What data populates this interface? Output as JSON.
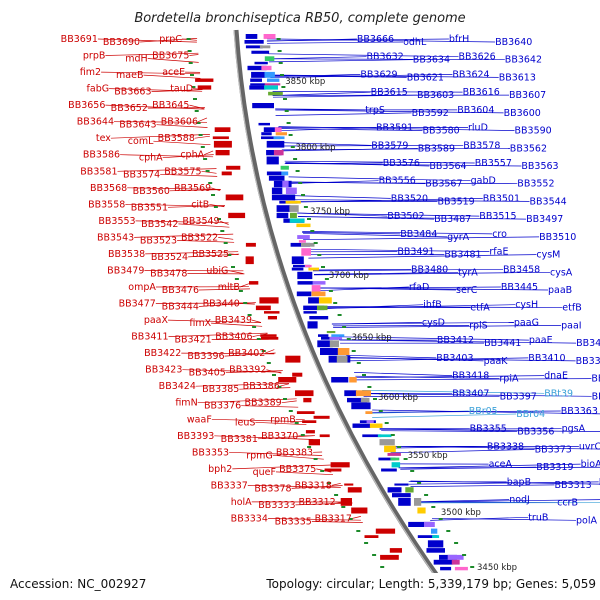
{
  "title": "Bordetella bronchiseptica RB50, complete genome",
  "footer": {
    "accession": "Accession: NC_002927",
    "summary": "Topology: circular; Length: 5,339,179 bp; Genes: 5,059"
  },
  "colors": {
    "left_strand": "#cc0000",
    "right_strand": "#0000cc",
    "rna": "#3aa0d8",
    "backbone": "#666666",
    "tick": "#1c8a2a"
  },
  "scale_labels": [
    "3850 kbp",
    "3800 kbp",
    "3750 kbp",
    "3700 kbp",
    "3650 kbp",
    "3600 kbp",
    "3550 kbp",
    "3500 kbp",
    "3450 kbp"
  ],
  "left_labels": [
    "BB3691",
    "BB3690",
    "prpC",
    "prpB",
    "mdH",
    "BB3675",
    "fim2",
    "maeB",
    "aceE",
    "fabG",
    "BB3663",
    "tauD",
    "BB3656",
    "BB3652",
    "BB3645",
    "BB3644",
    "BB3643",
    "BB3606",
    "tex",
    "comL",
    "BB3588",
    "BB3586",
    "cphA",
    "cphA",
    "BB3581",
    "BB3574",
    "BB3575",
    "BB3568",
    "BB3560",
    "BB3569",
    "BB3558",
    "BB3551",
    "citB",
    "BB3553",
    "BB3542",
    "BB3549",
    "BB3543",
    "BB3523",
    "BB3522",
    "BB3538",
    "BB3524",
    "BB3525",
    "BB3479",
    "BB3478",
    "ubiG",
    "ompA",
    "BB3476",
    "mltB",
    "BB3477",
    "BB3444",
    "BB3440",
    "paaX",
    "fimX",
    "BB3439",
    "BB3411",
    "BB3421",
    "BB3406",
    "BB3422",
    "BB3396",
    "BB3402",
    "BB3423",
    "BB3405",
    "BB3392",
    "BB3424",
    "BB3385",
    "BB3386",
    "fimN",
    "BB3376",
    "BB3389",
    "waaF",
    "leuS",
    "rpmB",
    "BB3393",
    "BB3381",
    "BB3370",
    "BB3353",
    "rpmG",
    "BB3383",
    "bph2",
    "queF",
    "BB3375",
    "BB3337",
    "BB3378",
    "BB3318",
    "holA",
    "BB3333",
    "BB3312",
    "BB3334",
    "BB3335",
    "BB3317"
  ],
  "right_labels": [
    "BB3666",
    "odhL",
    "bfrH",
    "BB3640",
    "BB3632",
    "BB3634",
    "BB3626",
    "BB3642",
    "BB3629",
    "BB3621",
    "BB3624",
    "BB3613",
    "BB3615",
    "BB3603",
    "BB3616",
    "BB3607",
    "trpS",
    "BB3592",
    "BB3604",
    "BB3600",
    "BB3591",
    "BB3580",
    "rluD",
    "BB3590",
    "BB3579",
    "BB3589",
    "BB3578",
    "BB3562",
    "BB3576",
    "BB3564",
    "BB3557",
    "BB3563",
    "BB3556",
    "BB3567",
    "gabD",
    "BB3552",
    "BB3520",
    "BB3519",
    "BB3501",
    "BB3544",
    "BB3502",
    "BB3487",
    "BB3515",
    "BB3497",
    "BB3484",
    "gyrA",
    "cro",
    "BB3510",
    "BB3491",
    "BB3481",
    "rfaE",
    "cysM",
    "BB3480",
    "tyrA",
    "BB3458",
    "cysA",
    "rfaD",
    "serC",
    "BB3445",
    "paaB",
    "ihfB",
    "etfA",
    "cysH",
    "etfB",
    "cysD",
    "rplS",
    "paaG",
    "paaI",
    "BB3412",
    "BB3441",
    "paaE",
    "BB3419",
    "BB3403",
    "paaK",
    "BB3410",
    "BB3398",
    "BB3418",
    "rpiA",
    "dnaE",
    "BB3387",
    "BB3407",
    "BB3397",
    "BBt39",
    "BB3394",
    "BBr05",
    "BBr04",
    "BB3363",
    "BB3382",
    "BB3355",
    "BB3356",
    "pgsA",
    "BB3362",
    "BB3338",
    "BB3373",
    "uvrC",
    "BB3329",
    "aceA",
    "BB3319",
    "bioA",
    "BB3315",
    "bapB",
    "BB3313",
    "BB3289",
    "clpB",
    "nodJ",
    "ccrB",
    "radA",
    "BBt37",
    "truB",
    "polA"
  ]
}
